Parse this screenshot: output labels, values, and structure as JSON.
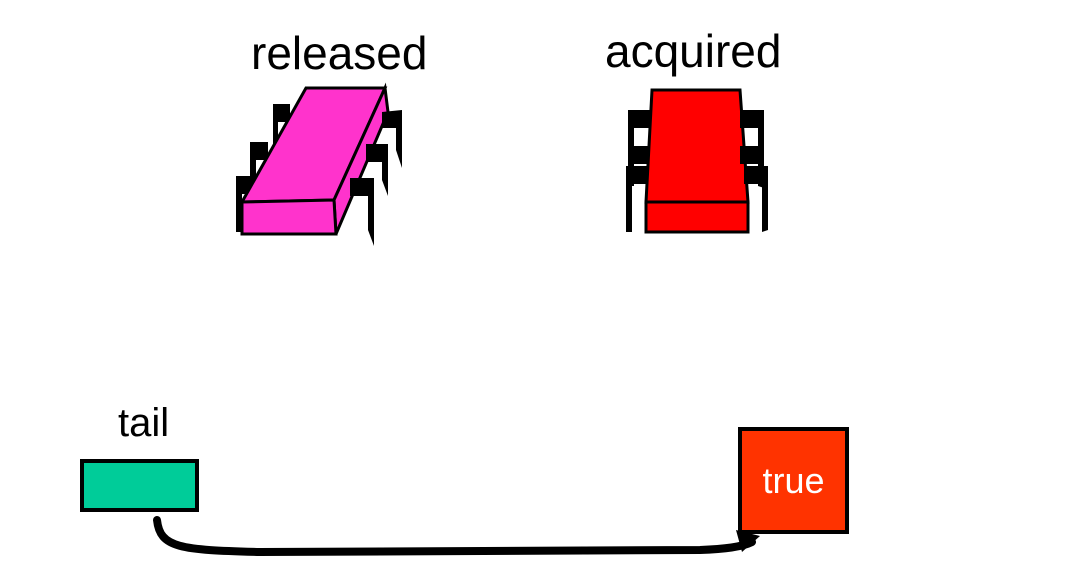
{
  "labels": {
    "released": "released",
    "acquired": "acquired",
    "tail": "tail"
  },
  "nodes": {
    "true_value": "true"
  },
  "colors": {
    "released_lock": "#ff33cc",
    "acquired_lock": "#ff0000",
    "tail_node": "#00cc99",
    "true_node": "#ff3300",
    "pins": "#000000",
    "arrow": "#000000"
  },
  "icons": {
    "released_lock": "chip-icon-tilted-open",
    "acquired_lock": "chip-icon-upright-closed"
  }
}
